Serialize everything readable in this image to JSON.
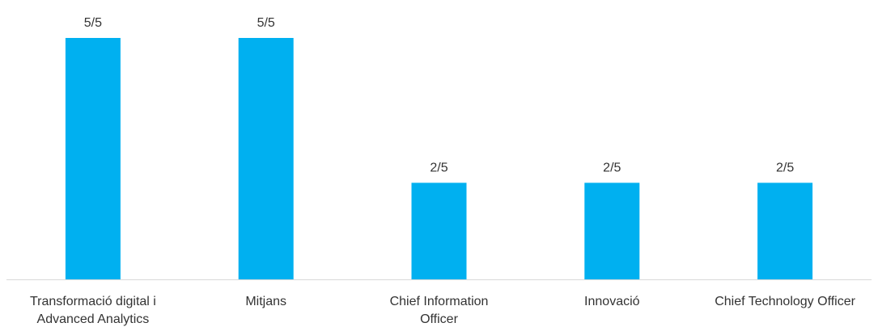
{
  "chart_data": {
    "type": "bar",
    "categories": [
      [
        "Transformació digital i",
        "Advanced Analytics"
      ],
      [
        "Mitjans"
      ],
      [
        "Chief Information",
        "Officer"
      ],
      [
        "Innovació"
      ],
      [
        "Chief Technology Officer"
      ]
    ],
    "values": [
      5,
      5,
      2,
      2,
      2
    ],
    "data_labels": [
      "5/5",
      "5/5",
      "2/5",
      "2/5",
      "2/5"
    ],
    "ylim": [
      0,
      5
    ],
    "grid": false,
    "legend": "none",
    "bar_color": "#00B0F0",
    "axis_color": "#D9D9D9"
  }
}
